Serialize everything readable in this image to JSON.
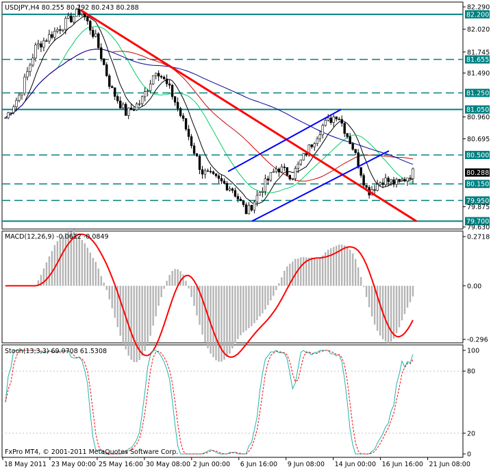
{
  "chart_data": [
    {
      "type": "candlestick",
      "symbol": "USDJPY,H4",
      "ohlc_header": "80.255 80.292 80.243 80.288",
      "current_price": "80.288",
      "ylim": [
        79.63,
        82.29
      ],
      "y_ticks": [
        "82.290",
        "82.200",
        "82.020",
        "81.745",
        "81.655",
        "81.490",
        "81.250",
        "81.050",
        "80.960",
        "80.695",
        "80.500",
        "80.288",
        "80.150",
        "79.950",
        "79.875",
        "79.700",
        "79.630"
      ],
      "level_labels": [
        "82.200",
        "81.655",
        "81.250",
        "81.050",
        "80.500",
        "80.150",
        "79.950",
        "79.700"
      ],
      "solid_levels": [
        82.2,
        81.05,
        79.7
      ],
      "dashed_levels": [
        81.655,
        81.25,
        80.5,
        80.15,
        79.95
      ],
      "x_labels": [
        "18 May 2011",
        "23 May 00:00",
        "25 May 16:00",
        "30 May 08:00",
        "2 Jun 00:00",
        "6 Jun 16:00",
        "9 Jun 08:00",
        "14 Jun 00:00",
        "16 Jun 16:00",
        "21 Jun 08:00"
      ],
      "key_closes": [
        80.95,
        81.25,
        81.8,
        81.95,
        82.1,
        82.25,
        81.9,
        81.3,
        81.0,
        81.15,
        81.55,
        81.25,
        80.8,
        80.3,
        80.2,
        80.1,
        79.8,
        80.1,
        80.35,
        80.25,
        80.55,
        80.85,
        81.0,
        80.6,
        80.05,
        80.2,
        80.15,
        80.288
      ],
      "trendlines": [
        {
          "color": "#ff0000",
          "from_price": 82.25,
          "to_price": 79.7
        },
        {
          "color": "#0000ff",
          "channel": "upper",
          "from_price": 80.3,
          "to_price": 81.05
        },
        {
          "color": "#0000ff",
          "channel": "lower",
          "from_price": 79.7,
          "to_price": 80.55
        }
      ]
    },
    {
      "type": "histogram",
      "title": "MACD(12,26,9) -0.0612 -0.0849",
      "ylim": [
        -0.296,
        0.2718
      ],
      "y_ticks": [
        "0.2718",
        "0.00",
        "-0.296"
      ]
    },
    {
      "type": "line",
      "title": "Stoch(13,3,3) 69.9708 61.5308",
      "ylim": [
        0,
        100
      ],
      "y_ticks": [
        "100",
        "80",
        "20",
        "0"
      ]
    }
  ],
  "copyright": "FxPro MT4, © 2001-2011 MetaQuotes Software Corp."
}
